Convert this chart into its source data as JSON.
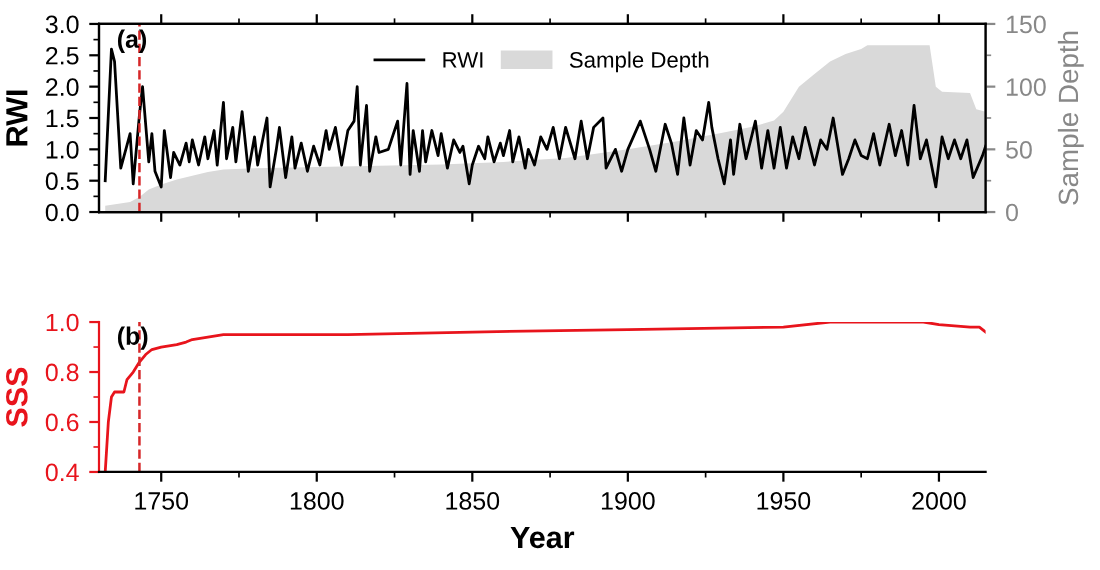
{
  "chart_data": [
    {
      "type": "line",
      "ylabel": "RWI",
      "y2label": "Sample Depth",
      "xlim": [
        1730,
        2015
      ],
      "xticks": [
        1750,
        1800,
        1850,
        1900,
        1950,
        2000
      ],
      "ylim": [
        0,
        3
      ],
      "yticks": [
        {
          "value": 0,
          "label": "0.0"
        },
        0.5,
        {
          "value": 1,
          "label": "1.0"
        },
        1.5,
        {
          "value": 2,
          "label": "2.0"
        },
        2.5,
        {
          "value": 3,
          "label": "3.0"
        }
      ],
      "y2lim": [
        0,
        150
      ],
      "y2ticks": [
        0,
        50,
        100,
        150
      ],
      "tick_labels": "y",
      "legend": "top",
      "annotations": [
        "(a)"
      ],
      "ref_lines": [
        {
          "axis": "x",
          "value": 1743,
          "color": "#d62728",
          "line_style": "dashed"
        }
      ],
      "series": [
        {
          "name": "Sample Depth",
          "type": "area",
          "axis": "y2",
          "color": "#d9d9d9",
          "x": [
            1732,
            1740,
            1743,
            1746,
            1750,
            1755,
            1760,
            1765,
            1770,
            1780,
            1800,
            1820,
            1840,
            1860,
            1880,
            1900,
            1915,
            1930,
            1940,
            1947,
            1950,
            1955,
            1960,
            1965,
            1970,
            1975,
            1977,
            1997,
            1999,
            2001,
            2010,
            2012,
            2015
          ],
          "values": [
            5,
            8,
            12,
            18,
            22,
            26,
            29,
            32,
            34,
            35,
            36,
            37,
            38,
            40,
            43,
            50,
            56,
            63,
            68,
            73,
            80,
            100,
            110,
            120,
            126,
            130,
            133,
            133,
            100,
            96,
            95,
            82,
            80
          ]
        },
        {
          "name": "RWI",
          "color": "#000000",
          "x": [
            1732,
            1734,
            1735,
            1737,
            1740,
            1741,
            1743,
            1744,
            1746,
            1747,
            1748,
            1750,
            1751,
            1753,
            1754,
            1756,
            1758,
            1759,
            1760,
            1762,
            1764,
            1765,
            1767,
            1768,
            1770,
            1771,
            1773,
            1774,
            1776,
            1778,
            1780,
            1781,
            1784,
            1785,
            1787,
            1788,
            1790,
            1792,
            1793,
            1795,
            1797,
            1799,
            1801,
            1803,
            1804,
            1806,
            1808,
            1810,
            1812,
            1813,
            1814,
            1816,
            1817,
            1819,
            1820,
            1823,
            1825,
            1826,
            1827,
            1829,
            1830,
            1831,
            1833,
            1834,
            1835,
            1837,
            1839,
            1840,
            1842,
            1844,
            1846,
            1847,
            1849,
            1850,
            1852,
            1854,
            1855,
            1857,
            1859,
            1860,
            1862,
            1863,
            1865,
            1867,
            1868,
            1870,
            1872,
            1874,
            1876,
            1878,
            1880,
            1883,
            1885,
            1887,
            1889,
            1892,
            1893,
            1896,
            1898,
            1900,
            1904,
            1907,
            1909,
            1912,
            1914,
            1916,
            1918,
            1920,
            1922,
            1924,
            1926,
            1927,
            1929,
            1931,
            1933,
            1934,
            1936,
            1938,
            1941,
            1943,
            1945,
            1947,
            1949,
            1951,
            1953,
            1955,
            1957,
            1960,
            1962,
            1964,
            1966,
            1969,
            1971,
            1973,
            1975,
            1977,
            1979,
            1981,
            1984,
            1986,
            1988,
            1990,
            1992,
            1994,
            1996,
            1999,
            2001,
            2003,
            2005,
            2007,
            2009,
            2011,
            2014,
            2015
          ],
          "values": [
            0.5,
            2.6,
            2.4,
            0.7,
            1.25,
            0.45,
            1.55,
            2.0,
            0.8,
            1.25,
            0.65,
            0.4,
            1.3,
            0.55,
            0.95,
            0.75,
            1.1,
            0.8,
            1.15,
            0.75,
            1.2,
            0.85,
            1.3,
            0.75,
            1.75,
            0.85,
            1.35,
            0.8,
            1.6,
            0.65,
            1.2,
            0.75,
            1.5,
            0.4,
            1.0,
            1.35,
            0.55,
            1.2,
            0.7,
            1.1,
            0.65,
            1.05,
            0.75,
            1.3,
            1.0,
            1.35,
            0.75,
            1.3,
            1.45,
            2.0,
            0.75,
            1.7,
            0.65,
            1.2,
            0.95,
            1.0,
            1.3,
            1.45,
            0.75,
            2.05,
            0.6,
            1.3,
            0.65,
            1.3,
            0.8,
            1.3,
            0.9,
            1.25,
            0.7,
            1.15,
            0.95,
            1.05,
            0.45,
            0.75,
            1.05,
            0.85,
            1.2,
            0.8,
            1.1,
            0.9,
            1.3,
            0.8,
            1.2,
            0.7,
            1.0,
            0.75,
            1.2,
            1.0,
            1.35,
            0.85,
            1.35,
            0.85,
            1.45,
            0.85,
            1.35,
            1.5,
            0.7,
            1.0,
            0.65,
            1.0,
            1.45,
            1.0,
            0.65,
            1.4,
            1.1,
            0.6,
            1.5,
            0.75,
            1.3,
            1.15,
            1.75,
            1.35,
            0.85,
            0.45,
            1.15,
            0.6,
            1.4,
            0.85,
            1.45,
            0.7,
            1.3,
            0.7,
            1.35,
            0.7,
            1.2,
            0.85,
            1.35,
            0.75,
            1.15,
            1.0,
            1.5,
            0.6,
            0.85,
            1.15,
            0.9,
            0.85,
            1.25,
            0.75,
            1.4,
            0.9,
            1.3,
            0.75,
            1.7,
            0.85,
            1.15,
            0.4,
            1.2,
            0.85,
            1.15,
            0.85,
            1.15,
            0.55,
            0.9,
            1.05
          ]
        }
      ]
    },
    {
      "type": "line",
      "xlabel": "Year",
      "ylabel": "SSS",
      "xlim": [
        1730,
        2015
      ],
      "xticks": [
        1750,
        1800,
        1850,
        1900,
        1950,
        2000
      ],
      "ylim": [
        0.4,
        1.0
      ],
      "yticks": [
        0.4,
        0.6,
        0.8,
        {
          "value": 1.0,
          "label": "1.0"
        }
      ],
      "annotations": [
        "(b)"
      ],
      "ref_lines": [
        {
          "axis": "x",
          "value": 1743,
          "color": "#d62728",
          "line_style": "dashed"
        }
      ],
      "series": [
        {
          "color": "#e8141c",
          "x": [
            1732,
            1733,
            1734,
            1735,
            1738,
            1739,
            1741,
            1743,
            1745,
            1747,
            1750,
            1755,
            1758,
            1760,
            1765,
            1770,
            1780,
            1800,
            1805,
            1810,
            1850,
            1900,
            1950,
            1965,
            1995,
            2000,
            2010,
            2013,
            2015
          ],
          "values": [
            0.4,
            0.6,
            0.7,
            0.72,
            0.72,
            0.77,
            0.8,
            0.84,
            0.87,
            0.89,
            0.9,
            0.91,
            0.92,
            0.93,
            0.94,
            0.95,
            0.95,
            0.95,
            0.95,
            0.95,
            0.96,
            0.97,
            0.98,
            1.0,
            1.0,
            0.99,
            0.98,
            0.98,
            0.96
          ]
        }
      ]
    }
  ]
}
